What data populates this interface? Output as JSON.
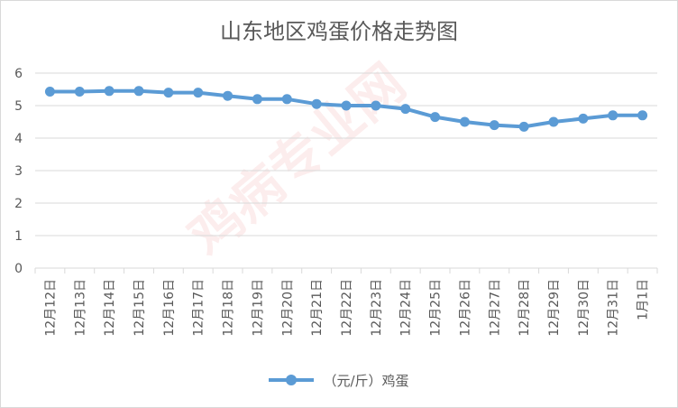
{
  "chart_data": {
    "type": "line",
    "title": "山东地区鸡蛋价格走势图",
    "categories": [
      "12月12日",
      "12月13日",
      "12月14日",
      "12月15日",
      "12月16日",
      "12月17日",
      "12月18日",
      "12月19日",
      "12月20日",
      "12月21日",
      "12月22日",
      "12月23日",
      "12月24日",
      "12月25日",
      "12月26日",
      "12月27日",
      "12月28日",
      "12月29日",
      "12月30日",
      "12月31日",
      "1月1日"
    ],
    "series": [
      {
        "name": "（元/斤）鸡蛋",
        "values": [
          5.43,
          5.43,
          5.45,
          5.45,
          5.4,
          5.4,
          5.3,
          5.2,
          5.2,
          5.05,
          5.0,
          5.0,
          4.9,
          4.65,
          4.5,
          4.4,
          4.35,
          4.5,
          4.6,
          4.7,
          4.7
        ]
      }
    ],
    "yticks": [
      "0",
      "1",
      "2",
      "3",
      "4",
      "5",
      "6"
    ],
    "ylim": [
      0,
      6
    ],
    "grid": true,
    "legend_position": "bottom",
    "line_color": "#5b9bd5"
  },
  "watermark": "鸡病专业网"
}
